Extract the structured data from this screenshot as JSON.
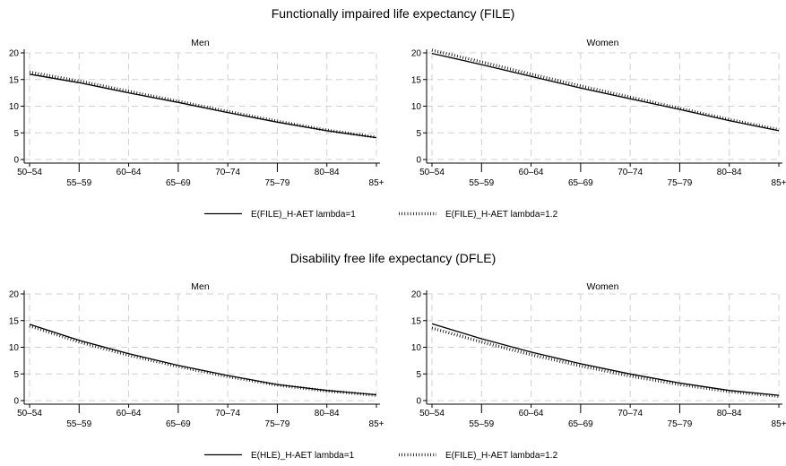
{
  "chart_data": [
    {
      "type": "line",
      "title": "Functionally impaired life expectancy (FILE)",
      "categories": [
        "50–54",
        "55–59",
        "60–64",
        "65–69",
        "70–74",
        "75–79",
        "80–84",
        "85+"
      ],
      "ylim": [
        0,
        20
      ],
      "yticks": [
        0,
        5,
        10,
        15,
        20
      ],
      "grid": true,
      "legend_position": "bottom",
      "series_styles": {
        "E(FILE)_H-AET lambda=1": "solid",
        "E(FILE)_H-AET lambda=1.2": "dotted"
      },
      "panels": [
        {
          "title": "Men",
          "series": [
            {
              "name": "E(FILE)_H-AET lambda=1",
              "values": [
                16.0,
                14.4,
                12.5,
                10.7,
                8.8,
                7.0,
                5.4,
                4.1
              ]
            },
            {
              "name": "E(FILE)_H-AET lambda=1.2",
              "values": [
                16.4,
                14.7,
                12.8,
                10.9,
                9.0,
                7.2,
                5.5,
                4.2
              ]
            }
          ]
        },
        {
          "title": "Women",
          "series": [
            {
              "name": "E(FILE)_H-AET lambda=1",
              "values": [
                19.9,
                17.8,
                15.6,
                13.4,
                11.4,
                9.4,
                7.3,
                5.4
              ]
            },
            {
              "name": "E(FILE)_H-AET lambda=1.2",
              "values": [
                20.5,
                18.3,
                16.0,
                13.8,
                11.7,
                9.6,
                7.5,
                5.6
              ]
            }
          ]
        }
      ],
      "legend": [
        "E(FILE)_H-AET lambda=1",
        "E(FILE)_H-AET lambda=1.2"
      ]
    },
    {
      "type": "line",
      "title": "Disability free life expectancy (DFLE)",
      "categories": [
        "50–54",
        "55–59",
        "60–64",
        "65–69",
        "70–74",
        "75–79",
        "80–84",
        "85+"
      ],
      "ylim": [
        0,
        20
      ],
      "yticks": [
        0,
        5,
        10,
        15,
        20
      ],
      "grid": true,
      "legend_position": "bottom",
      "series_styles": {
        "E(HLE)_H-AET lambda=1": "solid",
        "E(FILE)_H-AET lambda=1.2": "dotted"
      },
      "panels": [
        {
          "title": "Men",
          "series": [
            {
              "name": "E(HLE)_H-AET lambda=1",
              "values": [
                14.3,
                11.3,
                8.8,
                6.6,
                4.7,
                3.0,
                1.9,
                1.1
              ]
            },
            {
              "name": "E(FILE)_H-AET lambda=1.2",
              "values": [
                14.0,
                11.0,
                8.5,
                6.4,
                4.5,
                2.9,
                1.8,
                1.0
              ]
            }
          ]
        },
        {
          "title": "Women",
          "series": [
            {
              "name": "E(HLE)_H-AET lambda=1",
              "values": [
                14.4,
                11.6,
                9.1,
                6.9,
                5.0,
                3.3,
                1.9,
                1.0
              ]
            },
            {
              "name": "E(FILE)_H-AET lambda=1.2",
              "values": [
                13.6,
                11.0,
                8.6,
                6.5,
                4.6,
                3.0,
                1.7,
                0.8
              ]
            }
          ]
        }
      ],
      "legend": [
        "E(HLE)_H-AET lambda=1",
        "E(FILE)_H-AET lambda=1.2"
      ]
    }
  ]
}
